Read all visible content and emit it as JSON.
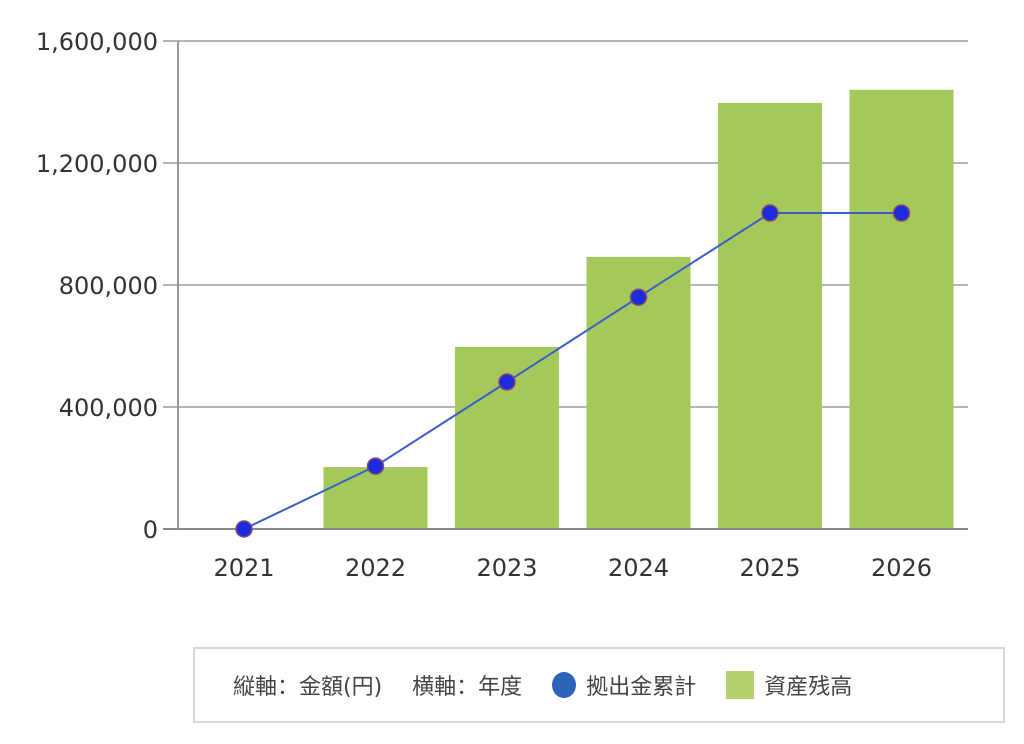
{
  "chart_data": {
    "type": "bar+line",
    "categories": [
      "2021",
      "2022",
      "2023",
      "2024",
      "2025",
      "2026"
    ],
    "series": [
      {
        "name": "資産残高",
        "type": "bar",
        "color": "#a4c85a",
        "values": [
          0,
          203000,
          597000,
          892000,
          1397000,
          1440000
        ]
      },
      {
        "name": "拠出金累計",
        "type": "line",
        "color": "#1a2be0",
        "line_color": "#3a5fc8",
        "values": [
          0,
          206000,
          482000,
          760000,
          1036000,
          1036000
        ]
      }
    ],
    "yticks": [
      "0",
      "400,000",
      "800,000",
      "1,200,000",
      "1,600,000"
    ],
    "ytick_values": [
      0,
      400000,
      800000,
      1200000,
      1600000
    ],
    "ylim": [
      0,
      1600000
    ],
    "xlabel": "横軸：年度",
    "ylabel": "縦軸：金額(円)",
    "grid": true,
    "legend_position": "bottom"
  },
  "legend": {
    "y_axis_note": "縦軸：金額(円)",
    "x_axis_note": "横軸：年度",
    "line_label": "拠出金累計",
    "bar_label": "資産残高"
  }
}
